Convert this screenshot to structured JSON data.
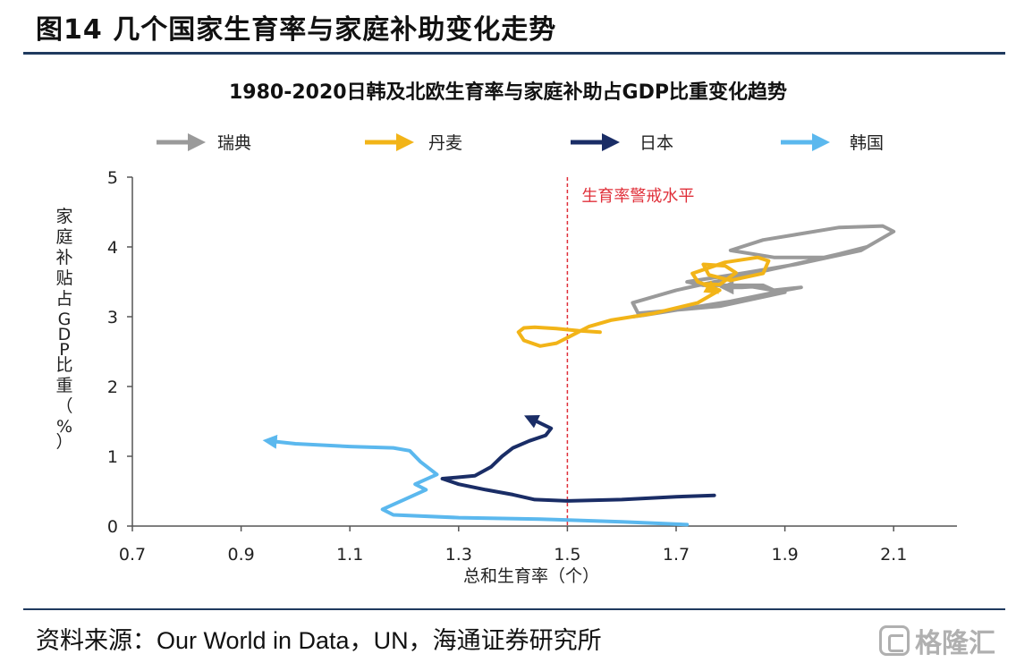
{
  "figure": {
    "title": "图14 几个国家生育率与家庭补助变化走势",
    "source": "资料来源：Our World in Data，UN，海通证券研究所",
    "watermark": "格隆汇"
  },
  "chart_data": {
    "type": "line",
    "title": "1980-2020日韩及北欧生育率与家庭补助占GDP比重变化趋势",
    "xlabel": "总和生育率（个）",
    "ylabel": "家庭补贴占GDP比重（%）",
    "xlim": [
      0.7,
      2.2
    ],
    "ylim": [
      0,
      5
    ],
    "xticks": [
      "0.7",
      "0.9",
      "1.1",
      "1.3",
      "1.5",
      "1.7",
      "1.9",
      "2.1"
    ],
    "yticks": [
      "0",
      "1",
      "2",
      "3",
      "4",
      "5"
    ],
    "legend_position": "top",
    "reference_line": {
      "x": 1.5,
      "label": "生育率警戒水平",
      "color": "#e0303a"
    },
    "series": [
      {
        "name": "瑞典",
        "color": "#9a9a9a",
        "points": [
          [
            1.62,
            3.0
          ],
          [
            1.64,
            3.02
          ],
          [
            1.72,
            3.12
          ],
          [
            1.8,
            3.22
          ],
          [
            1.9,
            3.38
          ],
          [
            1.93,
            3.42
          ],
          [
            1.88,
            3.38
          ],
          [
            1.86,
            3.45
          ],
          [
            1.75,
            3.45
          ],
          [
            1.72,
            3.5
          ],
          [
            1.82,
            3.62
          ],
          [
            1.92,
            3.75
          ],
          [
            2.04,
            3.95
          ],
          [
            2.1,
            4.22
          ],
          [
            2.08,
            4.3
          ],
          [
            2.0,
            4.28
          ],
          [
            1.86,
            4.1
          ],
          [
            1.8,
            3.95
          ],
          [
            1.88,
            3.85
          ],
          [
            1.98,
            3.85
          ],
          [
            2.05,
            4.0
          ],
          [
            2.0,
            3.9
          ],
          [
            1.9,
            3.72
          ],
          [
            1.8,
            3.55
          ],
          [
            1.7,
            3.38
          ],
          [
            1.62,
            3.2
          ],
          [
            1.63,
            3.05
          ],
          [
            1.78,
            3.15
          ],
          [
            1.9,
            3.35
          ],
          [
            1.84,
            3.43
          ],
          [
            1.82,
            3.42
          ],
          [
            1.79,
            3.42
          ]
        ]
      },
      {
        "name": "丹麦",
        "color": "#f2b418",
        "points": [
          [
            1.56,
            2.78
          ],
          [
            1.52,
            2.8
          ],
          [
            1.48,
            2.83
          ],
          [
            1.44,
            2.85
          ],
          [
            1.42,
            2.84
          ],
          [
            1.41,
            2.78
          ],
          [
            1.42,
            2.66
          ],
          [
            1.45,
            2.58
          ],
          [
            1.48,
            2.62
          ],
          [
            1.51,
            2.74
          ],
          [
            1.54,
            2.86
          ],
          [
            1.58,
            2.95
          ],
          [
            1.66,
            3.05
          ],
          [
            1.74,
            3.2
          ],
          [
            1.78,
            3.38
          ],
          [
            1.74,
            3.5
          ],
          [
            1.73,
            3.62
          ],
          [
            1.79,
            3.78
          ],
          [
            1.85,
            3.85
          ],
          [
            1.87,
            3.8
          ],
          [
            1.86,
            3.62
          ],
          [
            1.8,
            3.52
          ],
          [
            1.76,
            3.6
          ],
          [
            1.75,
            3.75
          ],
          [
            1.79,
            3.73
          ],
          [
            1.81,
            3.63
          ],
          [
            1.78,
            3.46
          ],
          [
            1.75,
            3.47
          ],
          [
            1.77,
            3.37
          ]
        ]
      },
      {
        "name": "日本",
        "color": "#1a2d66",
        "points": [
          [
            1.77,
            0.44
          ],
          [
            1.7,
            0.42
          ],
          [
            1.6,
            0.38
          ],
          [
            1.5,
            0.36
          ],
          [
            1.44,
            0.38
          ],
          [
            1.4,
            0.45
          ],
          [
            1.35,
            0.52
          ],
          [
            1.3,
            0.6
          ],
          [
            1.27,
            0.68
          ],
          [
            1.33,
            0.72
          ],
          [
            1.36,
            0.85
          ],
          [
            1.38,
            1.0
          ],
          [
            1.4,
            1.12
          ],
          [
            1.43,
            1.22
          ],
          [
            1.46,
            1.3
          ],
          [
            1.47,
            1.4
          ],
          [
            1.43,
            1.55
          ]
        ]
      },
      {
        "name": "韩国",
        "color": "#5bb8ee",
        "points": [
          [
            1.72,
            0.02
          ],
          [
            1.6,
            0.06
          ],
          [
            1.45,
            0.1
          ],
          [
            1.3,
            0.12
          ],
          [
            1.18,
            0.16
          ],
          [
            1.16,
            0.24
          ],
          [
            1.2,
            0.38
          ],
          [
            1.24,
            0.52
          ],
          [
            1.22,
            0.6
          ],
          [
            1.26,
            0.74
          ],
          [
            1.23,
            0.92
          ],
          [
            1.21,
            1.08
          ],
          [
            1.18,
            1.12
          ],
          [
            1.1,
            1.14
          ],
          [
            1.0,
            1.18
          ],
          [
            0.95,
            1.22
          ]
        ]
      }
    ]
  }
}
